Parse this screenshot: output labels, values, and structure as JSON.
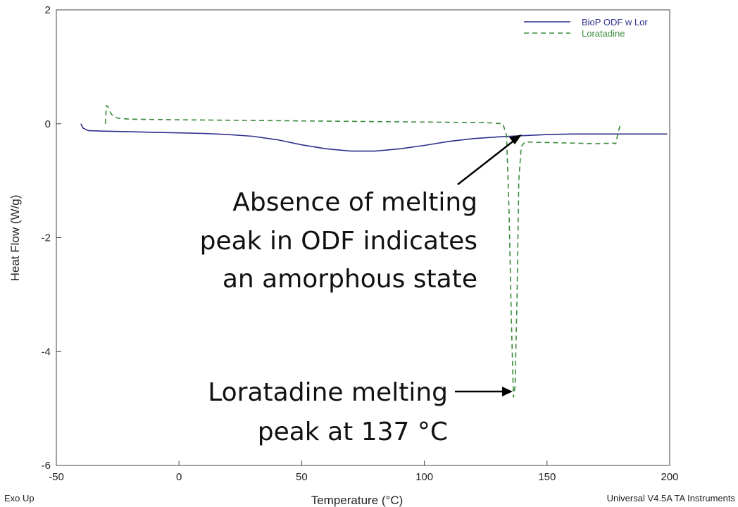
{
  "chart_data": {
    "type": "line",
    "xlabel": "Temperature (°C)",
    "ylabel": "Heat Flow (W/g)",
    "xlim": [
      -50,
      200
    ],
    "ylim": [
      -6,
      2
    ],
    "x_ticks": [
      -50,
      0,
      50,
      100,
      150,
      200
    ],
    "y_ticks": [
      2,
      0,
      -2,
      -4,
      -6
    ],
    "grid": false,
    "legend_position": "top-right",
    "series": [
      {
        "name": "BioP ODF w Lor",
        "color": "#2e2e8c",
        "style": "solid",
        "x": [
          -40,
          -39,
          -37,
          -30,
          -20,
          -10,
          0,
          10,
          20,
          30,
          40,
          50,
          60,
          70,
          80,
          90,
          100,
          110,
          120,
          130,
          140,
          150,
          160,
          170,
          180,
          190,
          199
        ],
        "y": [
          0.0,
          -0.08,
          -0.12,
          -0.13,
          -0.14,
          -0.15,
          -0.16,
          -0.17,
          -0.19,
          -0.22,
          -0.28,
          -0.37,
          -0.44,
          -0.48,
          -0.48,
          -0.44,
          -0.38,
          -0.31,
          -0.26,
          -0.23,
          -0.21,
          -0.19,
          -0.18,
          -0.18,
          -0.18,
          -0.18,
          -0.18
        ]
      },
      {
        "name": "Loratadine",
        "color": "#3a8a3a",
        "style": "dashed",
        "x": [
          -30,
          -29.6,
          -29,
          -28,
          -27,
          -25,
          -20,
          0,
          50,
          100,
          125,
          132,
          133.5,
          134.5,
          135.5,
          136.3,
          137,
          137.8,
          138.5,
          139.5,
          141,
          150,
          160,
          170,
          177,
          178,
          179,
          180
        ],
        "y": [
          0.0,
          0.32,
          0.3,
          0.2,
          0.14,
          0.1,
          0.08,
          0.07,
          0.05,
          0.03,
          0.02,
          0.0,
          -0.2,
          -1.5,
          -3.5,
          -4.8,
          -4.6,
          -3.0,
          -1.0,
          -0.4,
          -0.32,
          -0.33,
          -0.34,
          -0.35,
          -0.34,
          -0.35,
          -0.15,
          0.0
        ]
      }
    ],
    "annotations": [
      {
        "lines": [
          "Absence of melting",
          "peak in ODF indicates",
          "an amorphous state"
        ],
        "arrow_to": [
          140,
          -0.22
        ]
      },
      {
        "lines": [
          "Loratadine melting",
          "peak at 137 °C"
        ],
        "arrow_to": [
          136.5,
          -4.7
        ]
      }
    ]
  },
  "footer": {
    "left": "Exo Up",
    "right": "Universal V4.5A TA Instruments"
  }
}
